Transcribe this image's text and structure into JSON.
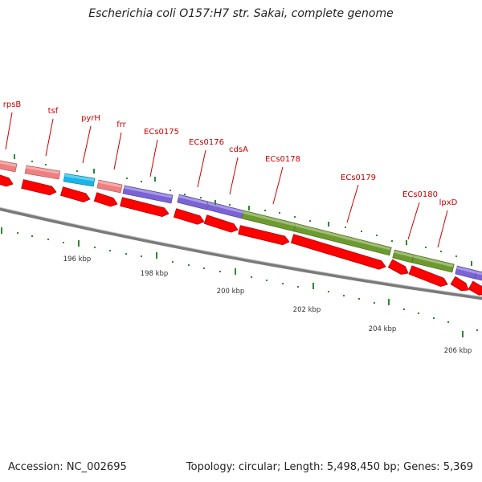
{
  "title": "Escherichia coli O157:H7 str. Sakai, complete genome",
  "footer": {
    "accession": "Accession: NC_002695",
    "summary": "Topology: circular; Length: 5,498,450 bp; Genes: 5,369"
  },
  "colors": {
    "backbone": "#8a8a8a",
    "cds": "#ff0000",
    "gene_label": "#cc0000",
    "tick": "#2a8a2a",
    "salmon": "#f08080",
    "cyan": "#18b6e8",
    "purple": "#7a63d6",
    "olive": "#6d9a2e"
  },
  "genes": [
    {
      "name": "rpsB",
      "color": "salmon"
    },
    {
      "name": "tsf",
      "color": "salmon"
    },
    {
      "name": "pyrH",
      "color": "cyan"
    },
    {
      "name": "frr",
      "color": "salmon"
    },
    {
      "name": "ECs0175",
      "color": "purple"
    },
    {
      "name": "ECs0176",
      "color": "purple"
    },
    {
      "name": "cdsA",
      "color": "purple"
    },
    {
      "name": "ECs0178",
      "color": "olive"
    },
    {
      "name": "ECs0179",
      "color": "olive"
    },
    {
      "name": "ECs0180",
      "color": "olive"
    },
    {
      "name": "lpxD",
      "color": "purple"
    }
  ],
  "scale": {
    "labels": [
      "196 kbp",
      "198 kbp",
      "200 kbp",
      "202 kbp",
      "204 kbp",
      "206 kbp"
    ]
  }
}
